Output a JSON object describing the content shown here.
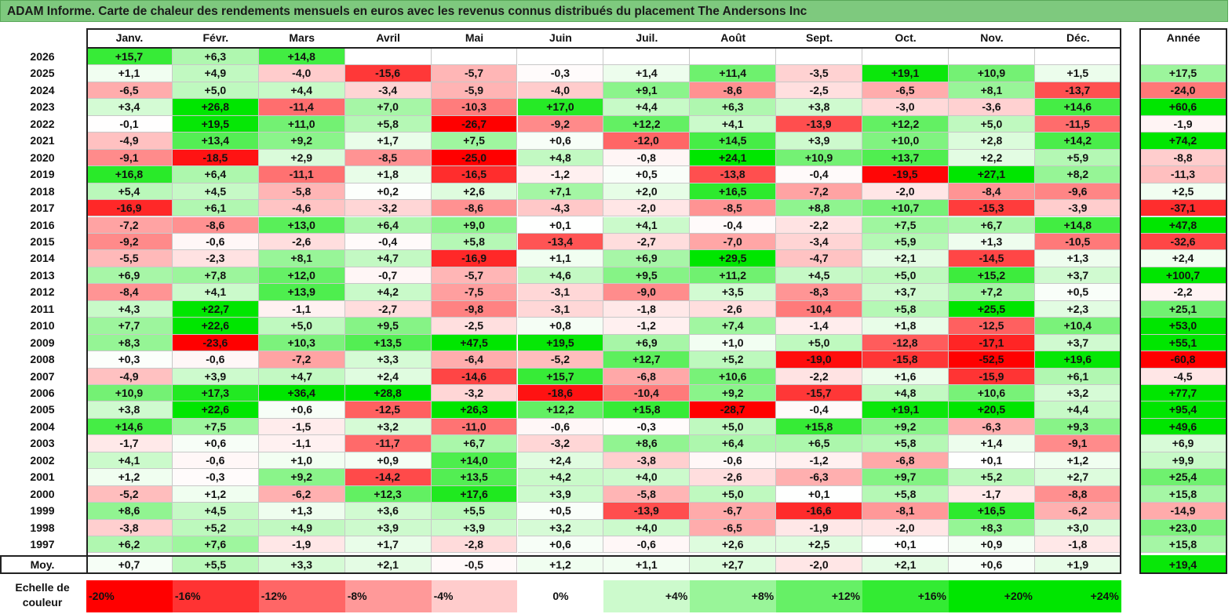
{
  "title": "ADAM Informe. Carte de chaleur des rendements mensuels en euros avec les revenus connus distribués du placement The Andersons Inc",
  "chart_data": {
    "type": "heatmap",
    "months": [
      "Janv.",
      "Févr.",
      "Mars",
      "Avril",
      "Mai",
      "Juin",
      "Juil.",
      "Août",
      "Sept.",
      "Oct.",
      "Nov.",
      "Déc."
    ],
    "year_header": "Année",
    "rows": [
      {
        "year": "2026",
        "values": [
          "+15,7",
          "+6,3",
          "+14,8",
          "",
          "",
          "",
          "",
          "",
          "",
          "",
          "",
          ""
        ],
        "annual": ""
      },
      {
        "year": "2025",
        "values": [
          "+1,1",
          "+4,9",
          "-4,0",
          "-15,6",
          "-5,7",
          "-0,3",
          "+1,4",
          "+11,4",
          "-3,5",
          "+19,1",
          "+10,9",
          "+1,5"
        ],
        "annual": "+17,5"
      },
      {
        "year": "2024",
        "values": [
          "-6,5",
          "+5,0",
          "+4,4",
          "-3,4",
          "-5,9",
          "-4,0",
          "+9,1",
          "-8,6",
          "-2,5",
          "-6,5",
          "+8,1",
          "-13,7"
        ],
        "annual": "-24,0"
      },
      {
        "year": "2023",
        "values": [
          "+3,4",
          "+26,8",
          "-11,4",
          "+7,0",
          "-10,3",
          "+17,0",
          "+4,4",
          "+6,3",
          "+3,8",
          "-3,0",
          "-3,6",
          "+14,6"
        ],
        "annual": "+60,6"
      },
      {
        "year": "2022",
        "values": [
          "-0,1",
          "+19,5",
          "+11,0",
          "+5,8",
          "-26,7",
          "-9,2",
          "+12,2",
          "+4,1",
          "-13,9",
          "+12,2",
          "+5,0",
          "-11,5"
        ],
        "annual": "-1,9"
      },
      {
        "year": "2021",
        "values": [
          "-4,9",
          "+13,4",
          "+9,2",
          "+1,7",
          "+7,5",
          "+0,6",
          "-12,0",
          "+14,5",
          "+3,9",
          "+10,0",
          "+2,8",
          "+14,2"
        ],
        "annual": "+74,2"
      },
      {
        "year": "2020",
        "values": [
          "-9,1",
          "-18,5",
          "+2,9",
          "-8,5",
          "-25,0",
          "+4,8",
          "-0,8",
          "+24,1",
          "+10,9",
          "+13,7",
          "+2,2",
          "+5,9"
        ],
        "annual": "-8,8"
      },
      {
        "year": "2019",
        "values": [
          "+16,8",
          "+6,4",
          "-11,1",
          "+1,8",
          "-16,5",
          "-1,2",
          "+0,5",
          "-13,8",
          "-0,4",
          "-19,5",
          "+27,1",
          "+8,2"
        ],
        "annual": "-11,3"
      },
      {
        "year": "2018",
        "values": [
          "+5,4",
          "+4,5",
          "-5,8",
          "+0,2",
          "+2,6",
          "+7,1",
          "+2,0",
          "+16,5",
          "-7,2",
          "-2,0",
          "-8,4",
          "-9,6"
        ],
        "annual": "+2,5"
      },
      {
        "year": "2017",
        "values": [
          "-16,9",
          "+6,1",
          "-4,6",
          "-3,2",
          "-8,6",
          "-4,3",
          "-2,0",
          "-8,5",
          "+8,8",
          "+10,7",
          "-15,3",
          "-3,9"
        ],
        "annual": "-37,1"
      },
      {
        "year": "2016",
        "values": [
          "-7,2",
          "-8,6",
          "+13,0",
          "+6,4",
          "+9,0",
          "+0,1",
          "+4,1",
          "-0,4",
          "-2,2",
          "+7,5",
          "+6,7",
          "+14,8"
        ],
        "annual": "+47,8"
      },
      {
        "year": "2015",
        "values": [
          "-9,2",
          "-0,6",
          "-2,6",
          "-0,4",
          "+5,8",
          "-13,4",
          "-2,7",
          "-7,0",
          "-3,4",
          "+5,9",
          "+1,3",
          "-10,5"
        ],
        "annual": "-32,6"
      },
      {
        "year": "2014",
        "values": [
          "-5,5",
          "-2,3",
          "+8,1",
          "+4,7",
          "-16,9",
          "+1,1",
          "+6,9",
          "+29,5",
          "-4,7",
          "+2,1",
          "-14,5",
          "+1,3"
        ],
        "annual": "+2,4"
      },
      {
        "year": "2013",
        "values": [
          "+6,9",
          "+7,8",
          "+12,0",
          "-0,7",
          "-5,7",
          "+4,6",
          "+9,5",
          "+11,2",
          "+4,5",
          "+5,0",
          "+15,2",
          "+3,7"
        ],
        "annual": "+100,7"
      },
      {
        "year": "2012",
        "values": [
          "-8,4",
          "+4,1",
          "+13,9",
          "+4,2",
          "-7,5",
          "-3,1",
          "-9,0",
          "+3,5",
          "-8,3",
          "+3,7",
          "+7,2",
          "+0,5"
        ],
        "annual": "-2,2"
      },
      {
        "year": "2011",
        "values": [
          "+4,3",
          "+22,7",
          "-1,1",
          "-2,7",
          "-9,8",
          "-3,1",
          "-1,8",
          "-2,6",
          "-10,4",
          "+5,8",
          "+25,5",
          "+2,3"
        ],
        "annual": "+25,1"
      },
      {
        "year": "2010",
        "values": [
          "+7,7",
          "+22,6",
          "+5,0",
          "+9,5",
          "-2,5",
          "+0,8",
          "-1,2",
          "+7,4",
          "-1,4",
          "+1,8",
          "-12,5",
          "+10,4"
        ],
        "annual": "+53,0"
      },
      {
        "year": "2009",
        "values": [
          "+8,3",
          "-23,6",
          "+10,3",
          "+13,5",
          "+47,5",
          "+19,5",
          "+6,9",
          "+1,0",
          "+5,0",
          "-12,8",
          "-17,1",
          "+3,7"
        ],
        "annual": "+55,1"
      },
      {
        "year": "2008",
        "values": [
          "+0,3",
          "-0,6",
          "-7,2",
          "+3,3",
          "-6,4",
          "-5,2",
          "+12,7",
          "+5,2",
          "-19,0",
          "-15,8",
          "-52,5",
          "+19,6"
        ],
        "annual": "-60,8"
      },
      {
        "year": "2007",
        "values": [
          "-4,9",
          "+3,9",
          "+4,7",
          "+2,4",
          "-14,6",
          "+15,7",
          "-6,8",
          "+10,6",
          "-2,2",
          "+1,6",
          "-15,9",
          "+6,1"
        ],
        "annual": "-4,5"
      },
      {
        "year": "2006",
        "values": [
          "+10,9",
          "+17,3",
          "+36,4",
          "+28,8",
          "-3,2",
          "-18,6",
          "-10,4",
          "+9,2",
          "-15,7",
          "+4,8",
          "+10,6",
          "+3,2"
        ],
        "annual": "+77,7"
      },
      {
        "year": "2005",
        "values": [
          "+3,8",
          "+22,6",
          "+0,6",
          "-12,5",
          "+26,3",
          "+12,2",
          "+15,8",
          "-28,7",
          "-0,4",
          "+19,1",
          "+20,5",
          "+4,4"
        ],
        "annual": "+95,4"
      },
      {
        "year": "2004",
        "values": [
          "+14,6",
          "+7,5",
          "-1,5",
          "+3,2",
          "-11,0",
          "-0,6",
          "-0,3",
          "+5,0",
          "+15,8",
          "+9,2",
          "-6,3",
          "+9,3"
        ],
        "annual": "+49,6"
      },
      {
        "year": "2003",
        "values": [
          "-1,7",
          "+0,6",
          "-1,1",
          "-11,7",
          "+6,7",
          "-3,2",
          "+8,6",
          "+6,4",
          "+6,5",
          "+5,8",
          "+1,4",
          "-9,1"
        ],
        "annual": "+6,9"
      },
      {
        "year": "2002",
        "values": [
          "+4,1",
          "-0,6",
          "+1,0",
          "+0,9",
          "+14,0",
          "+2,4",
          "-3,8",
          "-0,6",
          "-1,2",
          "-6,8",
          "+0,1",
          "+1,2"
        ],
        "annual": "+9,9"
      },
      {
        "year": "2001",
        "values": [
          "+1,2",
          "-0,3",
          "+9,2",
          "-14,2",
          "+13,5",
          "+4,2",
          "+4,0",
          "-2,6",
          "-6,3",
          "+9,7",
          "+5,2",
          "+2,7"
        ],
        "annual": "+25,4"
      },
      {
        "year": "2000",
        "values": [
          "-5,2",
          "+1,2",
          "-6,2",
          "+12,3",
          "+17,6",
          "+3,9",
          "-5,8",
          "+5,0",
          "+0,1",
          "+5,8",
          "-1,7",
          "-8,8"
        ],
        "annual": "+15,8"
      },
      {
        "year": "1999",
        "values": [
          "+8,6",
          "+4,5",
          "+1,3",
          "+3,6",
          "+5,5",
          "+0,5",
          "-13,9",
          "-6,7",
          "-16,6",
          "-8,1",
          "+16,5",
          "-6,2"
        ],
        "annual": "-14,9"
      },
      {
        "year": "1998",
        "values": [
          "-3,8",
          "+5,2",
          "+4,9",
          "+3,9",
          "+3,9",
          "+3,2",
          "+4,0",
          "-6,5",
          "-1,9",
          "-2,0",
          "+8,3",
          "+3,0"
        ],
        "annual": "+23,0"
      },
      {
        "year": "1997",
        "values": [
          "+6,2",
          "+7,6",
          "-1,9",
          "+1,7",
          "-2,8",
          "+0,6",
          "-0,6",
          "+2,6",
          "+2,5",
          "+0,1",
          "+0,9",
          "-1,8"
        ],
        "annual": "+15,8"
      }
    ],
    "average_row": {
      "label": "Moy.",
      "values": [
        "+0,7",
        "+5,5",
        "+3,3",
        "+2,1",
        "-0,5",
        "+1,2",
        "+1,1",
        "+2,7",
        "-2,0",
        "+2,1",
        "+0,6",
        "+1,9"
      ],
      "annual": "+19,4"
    },
    "color_scale": {
      "label_line1": "Echelle de",
      "label_line2": "couleur",
      "stops": [
        "-20%",
        "-16%",
        "-12%",
        "-8%",
        "-4%",
        "0%",
        "+4%",
        "+8%",
        "+12%",
        "+16%",
        "+20%",
        "+24%"
      ],
      "negative_color": "#ff0000",
      "positive_color": "#00e600",
      "neutral_color": "#ffffff"
    }
  }
}
